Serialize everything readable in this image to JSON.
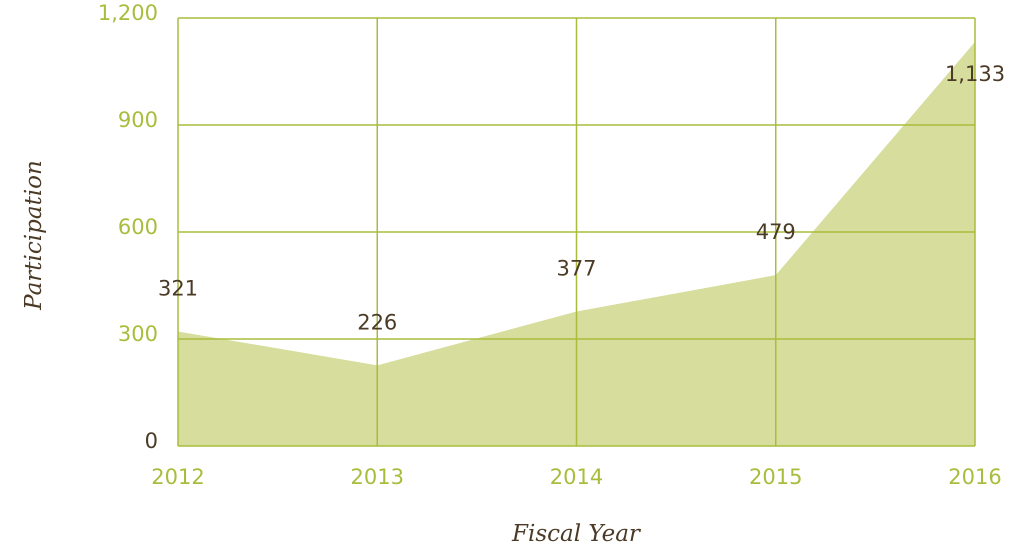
{
  "chart_data": {
    "type": "area",
    "x_label": "Fiscal Year",
    "y_label": "Participation",
    "categories": [
      "2012",
      "2013",
      "2014",
      "2015",
      "2016"
    ],
    "values": [
      321,
      226,
      377,
      479,
      1133
    ],
    "value_labels": [
      "321",
      "226",
      "377",
      "479",
      "1,133"
    ],
    "color": "#d7dd9c",
    "grid": true,
    "ylim": [
      0,
      1200
    ],
    "yticks": [
      0,
      300,
      600,
      900,
      {
        "value": 1200,
        "label": "1,200"
      }
    ]
  }
}
